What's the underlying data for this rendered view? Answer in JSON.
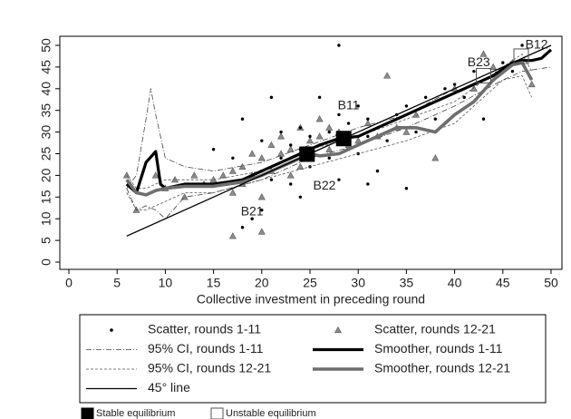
{
  "chart_data": {
    "type": "scatter",
    "x_label": "Collective investment in preceding round",
    "xlim": [
      0,
      50
    ],
    "xticks": [
      0,
      5,
      10,
      15,
      20,
      25,
      30,
      35,
      40,
      45,
      50
    ],
    "ylim": [
      0,
      50
    ],
    "yticks": [
      0,
      5,
      10,
      15,
      20,
      25,
      30,
      35,
      40,
      45,
      50
    ],
    "series": [
      {
        "name": "Scatter, rounds 1-11",
        "style": "dots",
        "color": "#000000",
        "x": [
          15,
          17,
          18,
          19,
          20,
          20,
          21,
          21,
          22,
          22,
          23,
          23,
          24,
          24,
          25,
          25,
          26,
          26,
          27,
          27,
          28,
          28,
          29,
          29,
          30,
          30,
          31,
          31,
          32,
          33,
          34,
          35,
          36,
          37,
          38,
          39,
          40,
          41,
          42,
          43,
          44,
          45,
          46,
          47,
          18,
          20,
          28,
          31,
          35,
          24
        ],
        "values": [
          26,
          24,
          33,
          10,
          28,
          21,
          38,
          19,
          30,
          24,
          27,
          18,
          26,
          31,
          29,
          22,
          38,
          27,
          30,
          24,
          34,
          50,
          32,
          26,
          36,
          25,
          29,
          33,
          21,
          28,
          34,
          36,
          30,
          38,
          33,
          40,
          41,
          38,
          44,
          33,
          42,
          46,
          44,
          50,
          8,
          12,
          19,
          18,
          17,
          15
        ]
      },
      {
        "name": "Scatter, rounds 12-21",
        "style": "triangles",
        "color": "#8c8c8c",
        "x": [
          6,
          7,
          9,
          10,
          11,
          12,
          13,
          14,
          15,
          16,
          17,
          17,
          18,
          18,
          19,
          19,
          20,
          20,
          21,
          21,
          22,
          22,
          23,
          23,
          24,
          24,
          25,
          25,
          26,
          26,
          27,
          28,
          29,
          30,
          31,
          32,
          33,
          34,
          35,
          36,
          38,
          40,
          42,
          43,
          44,
          46,
          48,
          17,
          20,
          27
        ],
        "values": [
          20,
          12,
          20,
          17,
          19,
          15,
          20,
          18,
          19,
          20,
          21,
          16,
          22,
          18,
          25,
          20,
          24,
          15,
          27,
          21,
          29,
          25,
          26,
          20,
          31,
          22,
          28,
          24,
          29,
          33,
          31,
          30,
          27,
          28,
          32,
          29,
          43,
          31,
          30,
          34,
          24,
          40,
          40,
          48,
          45,
          46,
          41,
          6,
          7,
          26
        ]
      },
      {
        "name": "95% CI, rounds 1-11",
        "style": "dashdot",
        "color": "#444444",
        "x": [
          6,
          7,
          8,
          8.5,
          9,
          10,
          12,
          15,
          20,
          25,
          30,
          35,
          40,
          45,
          47,
          50
        ],
        "upper": [
          17,
          20,
          33,
          40,
          34,
          24,
          22,
          21,
          23,
          27,
          31,
          34,
          40,
          45,
          47,
          50
        ],
        "lower": [
          17,
          12,
          13,
          12.5,
          12,
          10,
          15,
          16,
          19,
          24,
          27,
          31,
          36,
          42,
          44,
          45
        ]
      },
      {
        "name": "Smoother, rounds 1-11",
        "style": "thick",
        "color": "#000000",
        "x": [
          6,
          7,
          8,
          9,
          9.5,
          10,
          12,
          15,
          18,
          20,
          22,
          24,
          26,
          28,
          30,
          32,
          34,
          36,
          38,
          40,
          42,
          44,
          46,
          47,
          48,
          49,
          50
        ],
        "values": [
          18,
          16,
          23,
          25.5,
          18,
          17,
          18,
          18,
          19,
          21,
          23,
          25,
          27,
          28.5,
          29,
          31,
          33,
          35,
          37,
          39,
          41,
          43,
          46,
          46.5,
          46.5,
          47,
          49
        ]
      },
      {
        "name": "95% CI, rounds 12-21",
        "style": "dash",
        "color": "#555555",
        "x": [
          6,
          7,
          8,
          10,
          12,
          15,
          20,
          25,
          30,
          35,
          40,
          45,
          47,
          48
        ],
        "upper": [
          20,
          17,
          17,
          19,
          19,
          19,
          21,
          26,
          29,
          33,
          37,
          45,
          48,
          44
        ],
        "lower": [
          16,
          12,
          12,
          14,
          16,
          16,
          19,
          22,
          25,
          28,
          32,
          42,
          43,
          38
        ]
      },
      {
        "name": "Smoother, rounds 12-21",
        "style": "thickgray",
        "color": "#6e6e6e",
        "x": [
          6,
          7,
          8,
          9,
          10,
          12,
          15,
          18,
          20,
          22,
          24,
          25,
          26,
          28,
          30,
          32,
          34,
          36,
          38,
          40,
          42,
          44,
          46,
          47,
          48
        ],
        "values": [
          19,
          16,
          15.5,
          16.5,
          17,
          17.5,
          17.5,
          18.5,
          20,
          22,
          24,
          25,
          24.5,
          25,
          27,
          29,
          31,
          31,
          30,
          34,
          37,
          42,
          45.5,
          46,
          42
        ]
      },
      {
        "name": "45° line",
        "style": "line",
        "color": "#000000",
        "x": [
          6,
          50
        ],
        "values": [
          6,
          50
        ]
      },
      {
        "name": "Stable equilibrium",
        "style": "filled-square",
        "color": "#000000",
        "x": [
          24.7,
          28.5
        ],
        "values": [
          24.9,
          28.5
        ]
      },
      {
        "name": "Unstable equilibrium",
        "style": "open-square",
        "color": "#555555",
        "x": [
          43,
          46.9
        ],
        "values": [
          43,
          47.5
        ]
      }
    ],
    "annotations": [
      {
        "text": "B11",
        "x": 29,
        "y": 36
      },
      {
        "text": "B12",
        "x": 48.5,
        "y": 50
      },
      {
        "text": "B21",
        "x": 19,
        "y": 11.5
      },
      {
        "text": "B22",
        "x": 26.5,
        "y": 17.5
      },
      {
        "text": "B23",
        "x": 42.5,
        "y": 46
      }
    ]
  }
}
